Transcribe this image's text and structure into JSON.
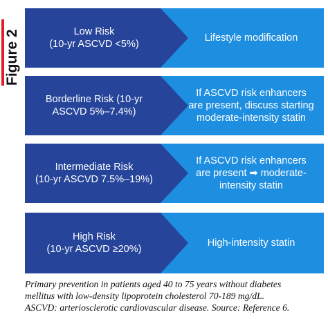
{
  "figure_label": "Figure 2",
  "colors": {
    "dark_blue": "#25449a",
    "light_blue": "#1e8ee0",
    "accent_red": "#e11d2a"
  },
  "rows": [
    {
      "left": "Low Risk\n(10-yr ASCVD <5%)",
      "right": "Lifestyle modification"
    },
    {
      "left": "Borderline Risk (10-yr\nASCVD 5%–7.4%)",
      "right": "If ASCVD risk enhancers\nare present, discuss starting\nmoderate-intensity statin"
    },
    {
      "left": "Intermediate Risk\n(10-yr ASCVD 7.5%–19%)",
      "right": "If ASCVD risk enhancers\nare present ➡ moderate-\nintensity statin"
    },
    {
      "left": "High Risk\n(10-yr ASCVD ≥20%)",
      "right": "High-intensity statin"
    }
  ],
  "caption": {
    "line1": "Primary prevention in patients aged 40 to 75 years without diabetes",
    "line2": "mellitus with low-density lipoprotein cholesterol 70-189 mg/dL.",
    "line3": "ASCVD: arteriosclerotic cardiovascular disease. Source: Reference 6."
  }
}
